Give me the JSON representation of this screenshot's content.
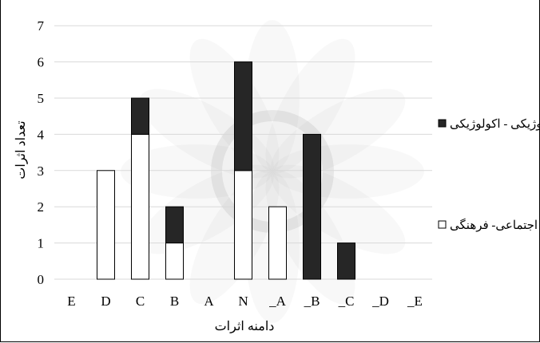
{
  "chart_data": {
    "type": "bar",
    "stacked": true,
    "categories": [
      "E",
      "D",
      "C",
      "B",
      "A",
      "N",
      "_A",
      "_B",
      "_C",
      "_D",
      "_E"
    ],
    "series": [
      {
        "name": "اجتماعی- فرهنگی",
        "values": [
          0,
          3,
          4,
          1,
          0,
          3,
          2,
          0,
          0,
          0,
          0
        ],
        "color": "#ffffff"
      },
      {
        "name": "بیولوژیکی - اکولوژیکی",
        "values": [
          0,
          0,
          1,
          1,
          0,
          3,
          0,
          4,
          1,
          0,
          0
        ],
        "color": "#262626"
      }
    ],
    "xlabel": "دامنه اثرات",
    "ylabel": "تعداد اثرات",
    "ylim": [
      0,
      7
    ],
    "yticks": [
      "0",
      "1",
      "2",
      "3",
      "4",
      "5",
      "6",
      "7"
    ],
    "grid": true,
    "legend_position": "right",
    "watermark": "decorative star-shaped emblem (light gray)"
  }
}
